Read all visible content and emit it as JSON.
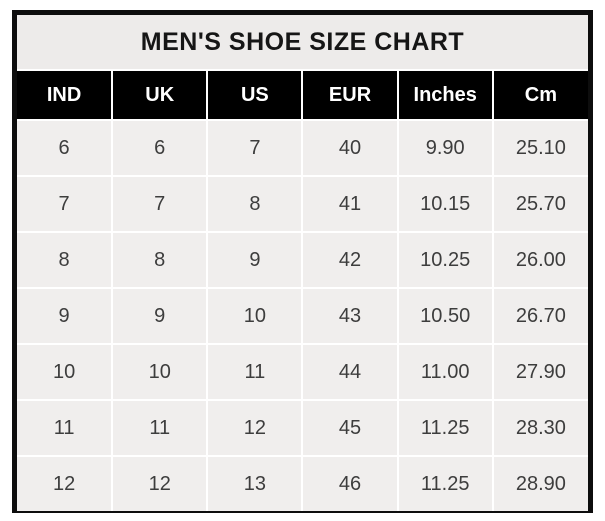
{
  "colors": {
    "frame_border": "#0d0d0d",
    "title_band_bg": "#edebea",
    "header_bg": "#000000",
    "header_text": "#ffffff",
    "cell_bg": "#f0eeed",
    "cell_text": "#3d3d3d",
    "gridline": "#ffffff"
  },
  "chart_data": {
    "type": "table",
    "title": "MEN'S SHOE SIZE CHART",
    "columns": [
      "IND",
      "UK",
      "US",
      "EUR",
      "Inches",
      "Cm"
    ],
    "rows": [
      [
        "6",
        "6",
        "7",
        "40",
        "9.90",
        "25.10"
      ],
      [
        "7",
        "7",
        "8",
        "41",
        "10.15",
        "25.70"
      ],
      [
        "8",
        "8",
        "9",
        "42",
        "10.25",
        "26.00"
      ],
      [
        "9",
        "9",
        "10",
        "43",
        "10.50",
        "26.70"
      ],
      [
        "10",
        "10",
        "11",
        "44",
        "11.00",
        "27.90"
      ],
      [
        "11",
        "11",
        "12",
        "45",
        "11.25",
        "28.30"
      ],
      [
        "12",
        "12",
        "13",
        "46",
        "11.25",
        "28.90"
      ]
    ]
  }
}
